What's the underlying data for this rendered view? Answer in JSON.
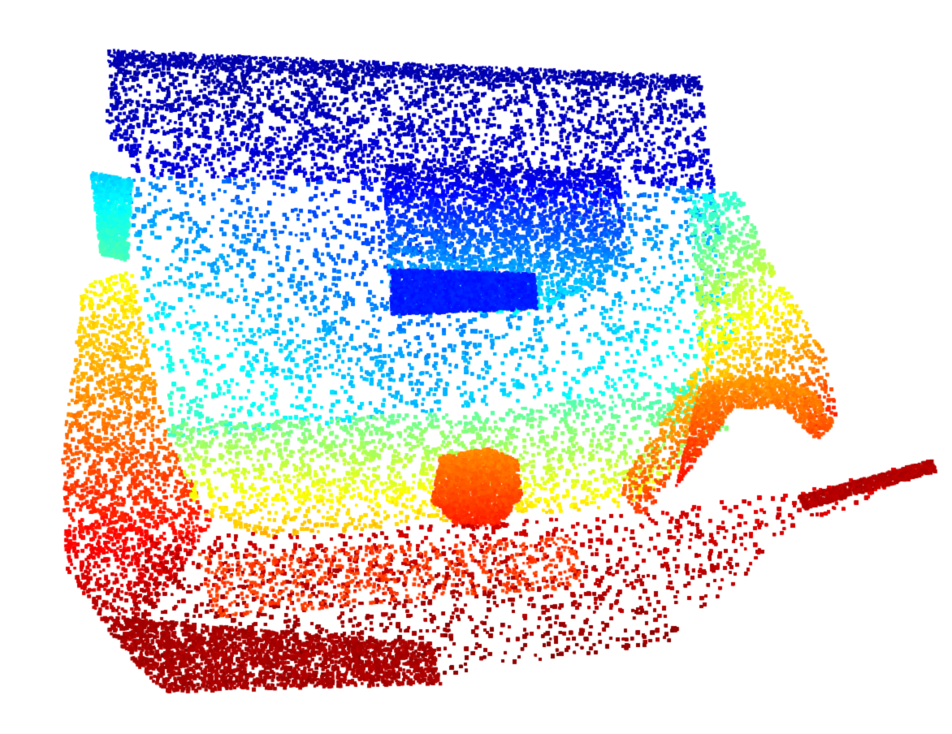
{
  "image": {
    "kind": "point-cloud-render",
    "colormap": "jet",
    "background": "#ffffff",
    "colors": {
      "far": "#00008f",
      "mid_blue": "#0050ff",
      "cyan": "#10f0ff",
      "yellow": "#ffee00",
      "orange": "#ff9500",
      "near": "#a30000"
    }
  }
}
